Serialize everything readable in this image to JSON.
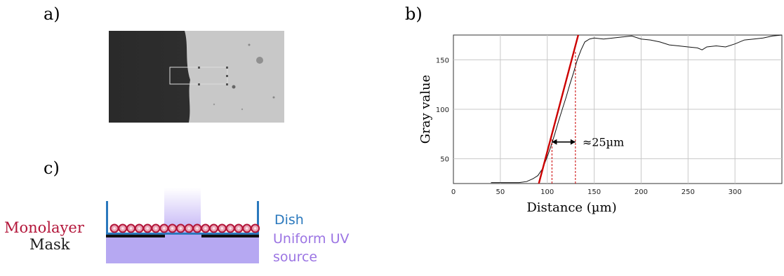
{
  "panels": {
    "a": "a)",
    "b": "b)",
    "c": "c)"
  },
  "schematic": {
    "monolayer": "Monolayer",
    "mask": "Mask",
    "dish": "Dish",
    "uv_line1": "Uniform UV",
    "uv_line2": "source"
  },
  "colors": {
    "monolayer": "#b3163a",
    "dish": "#2a78bd",
    "uv": "#9b74e3",
    "fit_line": "#cc0000"
  },
  "chart_data": {
    "type": "line",
    "title": "",
    "xlabel": "Distance (µm)",
    "ylabel": "Gray value",
    "xlim": [
      0,
      350
    ],
    "ylim": [
      25,
      175
    ],
    "xticks": [
      0,
      50,
      100,
      150,
      200,
      250,
      300
    ],
    "yticks": [
      50,
      100,
      150
    ],
    "grid": true,
    "series": [
      {
        "x": [
          40,
          55,
          70,
          78,
          85,
          90,
          95,
          100,
          104,
          108,
          112,
          116,
          120,
          124,
          128,
          132,
          136,
          140,
          145,
          150,
          160,
          170,
          180,
          190,
          200,
          210,
          220,
          230,
          240,
          250,
          260,
          265,
          270,
          280,
          290,
          300,
          310,
          320,
          330,
          340,
          350
        ],
        "y": [
          26,
          26,
          26,
          27,
          30,
          33,
          40,
          52,
          63,
          75,
          88,
          100,
          112,
          125,
          137,
          150,
          160,
          168,
          171,
          172,
          171,
          172,
          173,
          174,
          171,
          170,
          168,
          165,
          164,
          163,
          162,
          160,
          163,
          164,
          163,
          166,
          170,
          171,
          172,
          174,
          175
        ]
      }
    ],
    "fit_line": {
      "x": [
        91,
        133
      ],
      "y": [
        25,
        175
      ]
    },
    "markers": [
      {
        "x": 105,
        "y1": 25,
        "y2": 70
      },
      {
        "x": 130,
        "y1": 25,
        "y2": 158
      }
    ],
    "arrow": {
      "x1": 105,
      "x2": 130,
      "y": 67
    },
    "annotation": "≈25µm"
  }
}
